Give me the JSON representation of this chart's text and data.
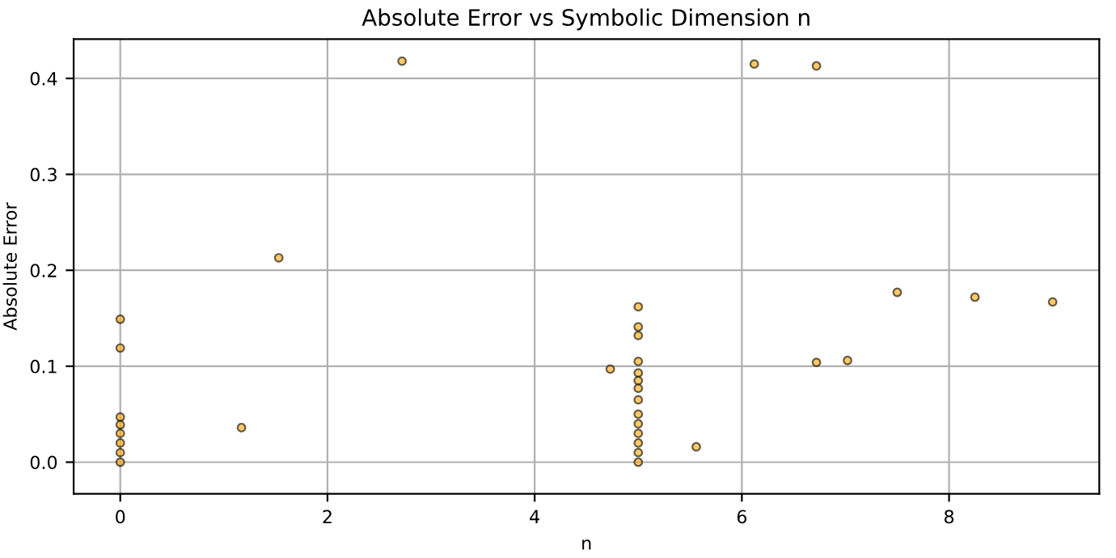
{
  "chart_data": {
    "type": "scatter",
    "title": "Absolute Error vs Symbolic Dimension n",
    "xlabel": "n",
    "ylabel": "Absolute Error",
    "x": [
      0,
      0,
      0,
      0,
      0,
      0,
      0,
      0,
      1.17,
      1.53,
      2.72,
      4.73,
      5,
      5,
      5,
      5,
      5,
      5,
      5,
      5,
      5,
      5,
      5,
      5,
      5,
      5,
      5.56,
      6.12,
      6.72,
      6.72,
      7.02,
      7.5,
      8.25,
      9.0
    ],
    "values": [
      0.149,
      0.119,
      0.047,
      0.039,
      0.03,
      0.02,
      0.01,
      0,
      0.036,
      0.213,
      0.418,
      0.097,
      0.162,
      0.141,
      0.132,
      0.105,
      0.093,
      0.085,
      0.077,
      0.065,
      0.05,
      0.04,
      0.03,
      0.02,
      0.01,
      0,
      0.016,
      0.415,
      0.413,
      0.104,
      0.106,
      0.177,
      0.172,
      0.167
    ],
    "color": "#ffa500",
    "marker": "circle",
    "grid": true,
    "xlim": [
      -0.45,
      9.45
    ],
    "ylim": [
      -0.033,
      0.441
    ],
    "xticks": [
      0,
      2,
      4,
      6,
      8
    ],
    "yticks": [
      {
        "value": 0,
        "label": "0.0"
      },
      {
        "value": 0.1,
        "label": "0.1"
      },
      {
        "value": 0.2,
        "label": "0.2"
      },
      {
        "value": 0.3,
        "label": "0.3"
      },
      {
        "value": 0.4,
        "label": "0.4"
      }
    ]
  }
}
